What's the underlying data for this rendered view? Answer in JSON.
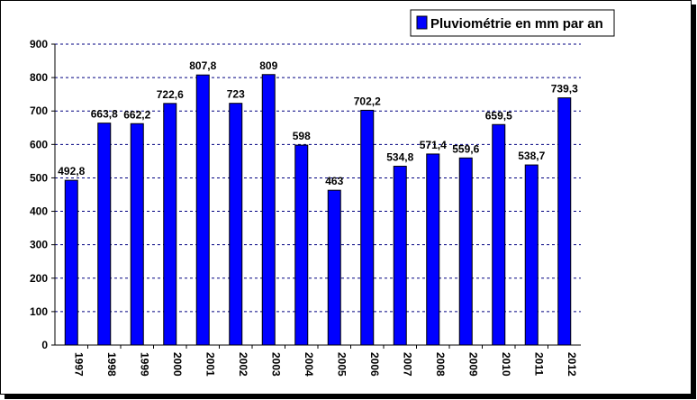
{
  "chart_data": {
    "type": "bar",
    "categories": [
      "1997",
      "1998",
      "1999",
      "2000",
      "2001",
      "2002",
      "2003",
      "2004",
      "2005",
      "2006",
      "2007",
      "2008",
      "2009",
      "2010",
      "2011",
      "2012"
    ],
    "values": [
      492.8,
      663.8,
      662.2,
      722.6,
      807.8,
      723,
      809,
      598,
      463,
      702.2,
      534.8,
      571.4,
      559.6,
      659.5,
      538.7,
      739.3
    ],
    "value_labels": [
      "492,8",
      "663,8",
      "662,2",
      "722,6",
      "807,8",
      "723",
      "809",
      "598",
      "463",
      "702,2",
      "534,8",
      "571,4",
      "559,6",
      "659,5",
      "538,7",
      "739,3"
    ],
    "series": [
      {
        "name": "Pluviométrie en mm par an"
      }
    ],
    "ylim": [
      0,
      900
    ],
    "yticks": [
      0,
      100,
      200,
      300,
      400,
      500,
      600,
      700,
      800,
      900
    ],
    "grid": true,
    "legend_position": "top-right",
    "colors": {
      "bar": "#0000FF",
      "bar_edge": "#000000",
      "grid": "#000080"
    }
  }
}
